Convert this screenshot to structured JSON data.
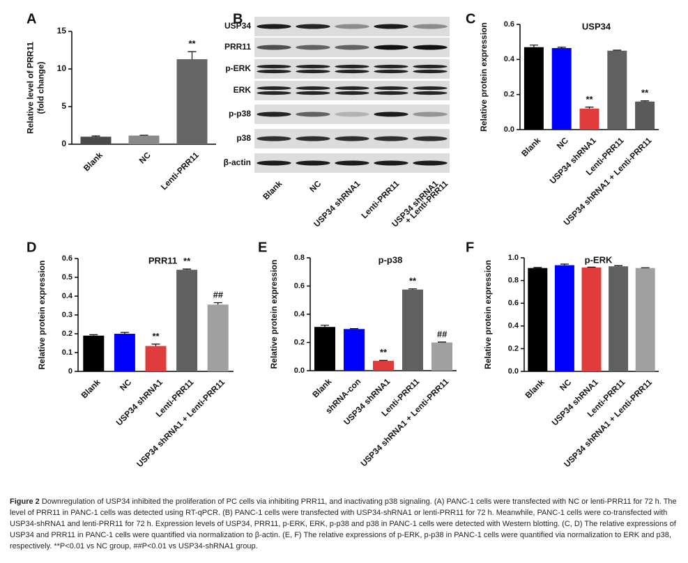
{
  "chart_data": [
    {
      "type": "bar",
      "panel": "A",
      "ylabel": [
        "Relative level of PRR11",
        "(fold change)"
      ],
      "categories": [
        "Blank",
        "NC",
        "Lenti-PRR11"
      ],
      "series": [
        {
          "values": [
            1.0,
            1.15,
            11.3
          ],
          "errors": [
            0.1,
            0.05,
            1.0
          ],
          "colors": [
            "#4a4a4a",
            "#8a8a8a",
            "#666666"
          ]
        }
      ],
      "annotations": [
        null,
        null,
        "**"
      ],
      "ylim": [
        0,
        15
      ],
      "yticks": [
        0,
        5,
        10,
        15
      ]
    },
    {
      "type": "bar",
      "panel": "C",
      "title": "USP34",
      "ylabel": [
        "Relative protein expression"
      ],
      "categories": [
        "Blank",
        "NC",
        "USP34 shRNA1",
        "Lenti-PRR11",
        "USP34 shRNA1 + Lenti-PRR11"
      ],
      "series": [
        {
          "values": [
            0.47,
            0.465,
            0.12,
            0.45,
            0.16
          ],
          "errors": [
            0.012,
            0.005,
            0.008,
            0.003,
            0.004
          ],
          "colors": [
            "#000000",
            "#0000ff",
            "#e03c3c",
            "#606060",
            "#5a5a5a"
          ]
        }
      ],
      "annotations": [
        null,
        null,
        "**",
        null,
        "**"
      ],
      "ylim": [
        0,
        0.6
      ],
      "yticks": [
        {
          "value": 0,
          "label": "0.0"
        },
        0.2,
        0.4,
        0.6
      ]
    },
    {
      "type": "bar",
      "panel": "D",
      "title": "PRR11",
      "ylabel": [
        "Relative protein expression"
      ],
      "categories": [
        "Blank",
        "NC",
        "USP34 shRNA1",
        "Lenti-PRR11",
        "USP34 shRNA1 + Lenti-PRR11"
      ],
      "series": [
        {
          "values": [
            0.19,
            0.2,
            0.135,
            0.54,
            0.355
          ],
          "errors": [
            0.005,
            0.007,
            0.01,
            0.004,
            0.01
          ],
          "colors": [
            "#000000",
            "#0000ff",
            "#e03c3c",
            "#606060",
            "#a0a0a0"
          ]
        }
      ],
      "annotations": [
        null,
        null,
        "**",
        "**",
        "##"
      ],
      "ylim": [
        0,
        0.6
      ],
      "yticks": [
        0,
        0.1,
        0.2,
        0.3,
        0.4,
        0.5,
        0.6
      ]
    },
    {
      "type": "bar",
      "panel": "E",
      "title": "p-p38",
      "ylabel": [
        "Relative protein expression"
      ],
      "categories": [
        "Blank",
        "shRNA-con",
        "USP34 shRNA1",
        "Lenti-PRR11",
        "USP34 shRNA1 + Lenti-PRR11"
      ],
      "series": [
        {
          "values": [
            0.31,
            0.295,
            0.07,
            0.575,
            0.2
          ],
          "errors": [
            0.012,
            0.003,
            0.003,
            0.005,
            0.003
          ],
          "colors": [
            "#000000",
            "#0000ff",
            "#e03c3c",
            "#606060",
            "#a0a0a0"
          ]
        }
      ],
      "annotations": [
        null,
        null,
        "**",
        "**",
        "##"
      ],
      "ylim": [
        0,
        0.8
      ],
      "yticks": [
        {
          "value": 0,
          "label": "0.0"
        },
        0.2,
        0.4,
        0.6,
        0.8
      ]
    },
    {
      "type": "bar",
      "panel": "F",
      "title": "p-ERK",
      "ylabel": [
        "Relative protein expression"
      ],
      "categories": [
        "Blank",
        "NC",
        "USP34 shRNA1",
        "Lenti-PRR11",
        "USP34 shRNA1 + Lenti-PRR11"
      ],
      "series": [
        {
          "values": [
            0.91,
            0.935,
            0.915,
            0.925,
            0.91
          ],
          "errors": [
            0.005,
            0.01,
            0.003,
            0.006,
            0.003
          ],
          "colors": [
            "#000000",
            "#0000ff",
            "#e03c3c",
            "#606060",
            "#a0a0a0"
          ]
        }
      ],
      "annotations": [
        null,
        null,
        null,
        null,
        null
      ],
      "ylim": [
        0,
        1.0
      ],
      "yticks": [
        {
          "value": 0,
          "label": "0.0"
        },
        0.2,
        0.4,
        0.6,
        0.8,
        {
          "value": 1,
          "label": "1.0"
        }
      ]
    }
  ],
  "blot": {
    "panel": "B",
    "rows": [
      "USP34",
      "PRR11",
      "p-ERK",
      "ERK",
      "p-p38",
      "p38",
      "β-actin"
    ],
    "lanes": [
      [
        "Blank"
      ],
      [
        "NC"
      ],
      [
        "USP34 shRNA1"
      ],
      [
        "Lenti-PRR11"
      ],
      [
        "USP34 shRNA1",
        "+ Lenti-PRR11"
      ]
    ]
  },
  "caption": {
    "label": "Figure 2",
    "text": "Downregulation of USP34 inhibited the proliferation of PC cells via inhibiting PRR11, and inactivating p38 signaling. (A) PANC-1 cells were transfected with NC or lenti-PRR11 for 72 h. The level of PRR11 in PANC-1 cells was detected using RT-qPCR. (B) PANC-1 cells were transfected with USP34-shRNA1 or lenti-PRR11 for 72 h. Meanwhile, PANC-1 cells were co-transfected with USP34-shRNA1 and lenti-PRR11 for 72 h. Expression levels of USP34, PRR11, p-ERK, ERK, p-p38 and p38 in PANC-1 cells were detected with Western blotting. (C, D) The relative expressions of USP34 and PRR11 in PANC-1 cells were quantified via normalization to β-actin. (E, F) The relative expressions of p-ERK, p-p38 in PANC-1 cells were quantified via normalization to ERK and p38, respectively. **P<0.01 vs NC group, ##P<0.01 vs USP34-shRNA1 group."
  }
}
